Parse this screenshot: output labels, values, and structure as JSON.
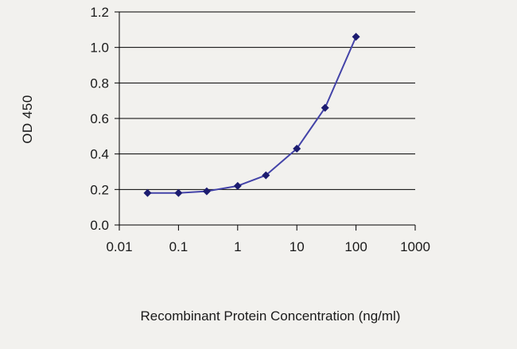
{
  "chart_data": {
    "type": "line",
    "title": "",
    "xlabel": "Recombinant Protein Concentration (ng/ml)",
    "ylabel": "OD 450",
    "x_scale": "log",
    "xlim": [
      0.01,
      1000
    ],
    "ylim": [
      0,
      1.2
    ],
    "x_ticks": [
      0.01,
      0.1,
      1,
      10,
      100,
      1000
    ],
    "x_tick_labels": [
      "0.01",
      "0.1",
      "1",
      "10",
      "100",
      "1000"
    ],
    "y_ticks": [
      0,
      0.2,
      0.4,
      0.6,
      0.8,
      1.0,
      1.2
    ],
    "y_tick_labels": [
      "0.0",
      "0.2",
      "0.4",
      "0.6",
      "0.8",
      "1.0",
      "1.2"
    ],
    "grid": "horizontal",
    "legend": "none",
    "series": [
      {
        "name": "OD 450",
        "x": [
          0.03,
          0.1,
          0.3,
          1,
          3,
          10,
          30,
          100
        ],
        "y": [
          0.18,
          0.18,
          0.19,
          0.22,
          0.28,
          0.43,
          0.66,
          1.06
        ],
        "line_color": "#4343a8",
        "marker": "diamond",
        "marker_color": "#1c1c70"
      }
    ]
  },
  "colors": {
    "background": "#f2f1ee",
    "axis": "#000000",
    "text": "#1a1a1a"
  }
}
